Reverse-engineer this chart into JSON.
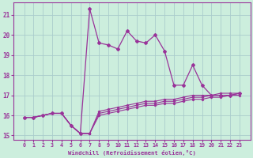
{
  "xlabel": "Windchill (Refroidissement éolien,°C)",
  "background_color": "#cceedd",
  "grid_color": "#aacccc",
  "line_color": "#993399",
  "x_hours": [
    0,
    1,
    2,
    3,
    4,
    5,
    6,
    7,
    8,
    9,
    10,
    11,
    12,
    13,
    14,
    15,
    16,
    17,
    18,
    19,
    20,
    21,
    22,
    23
  ],
  "temp_line": [
    15.9,
    15.9,
    16.0,
    16.1,
    16.1,
    15.5,
    15.1,
    21.3,
    19.6,
    19.5,
    19.3,
    20.2,
    19.7,
    19.6,
    20.0,
    19.2,
    17.5,
    17.5,
    18.5,
    17.5,
    17.0,
    17.0,
    17.0,
    17.1
  ],
  "wc_line1": [
    15.9,
    15.9,
    16.0,
    16.1,
    16.1,
    15.5,
    15.1,
    15.1,
    16.0,
    16.1,
    16.2,
    16.3,
    16.4,
    16.5,
    16.5,
    16.6,
    16.6,
    16.7,
    16.8,
    16.8,
    16.9,
    16.9,
    17.0,
    17.0
  ],
  "wc_line2": [
    15.9,
    15.9,
    16.0,
    16.1,
    16.1,
    15.5,
    15.1,
    15.1,
    16.1,
    16.2,
    16.3,
    16.4,
    16.5,
    16.6,
    16.6,
    16.7,
    16.7,
    16.8,
    16.9,
    16.9,
    17.0,
    17.0,
    17.0,
    17.1
  ],
  "wc_line3": [
    15.9,
    15.9,
    16.0,
    16.1,
    16.1,
    15.5,
    15.1,
    15.1,
    16.2,
    16.3,
    16.4,
    16.5,
    16.6,
    16.7,
    16.7,
    16.8,
    16.8,
    16.9,
    17.0,
    17.0,
    17.0,
    17.1,
    17.1,
    17.1
  ],
  "ylim": [
    14.8,
    21.6
  ],
  "yticks": [
    15,
    16,
    17,
    18,
    19,
    20,
    21
  ],
  "xticks": [
    0,
    1,
    2,
    3,
    4,
    5,
    6,
    7,
    8,
    9,
    10,
    11,
    12,
    13,
    14,
    15,
    16,
    17,
    18,
    19,
    20,
    21,
    22,
    23
  ]
}
